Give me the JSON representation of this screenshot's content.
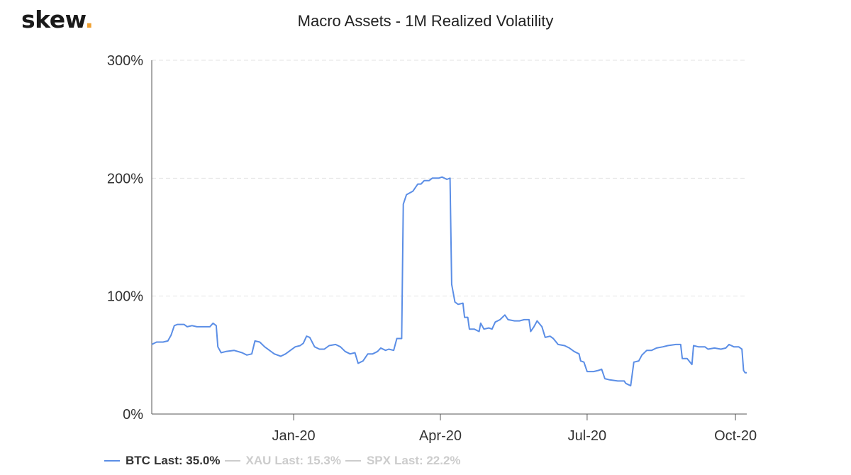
{
  "brand": {
    "name": "skew",
    "dot": "."
  },
  "chart_data": {
    "type": "line",
    "title": "Macro Assets - 1M Realized Volatility",
    "xlabel": "",
    "ylabel": "",
    "ylim": [
      0,
      300
    ],
    "yticks": [
      "0%",
      "100%",
      "200%",
      "300%"
    ],
    "ytick_values": [
      0,
      100,
      200,
      300
    ],
    "xticks": [
      "Jan-20",
      "Apr-20",
      "Jul-20",
      "Oct-20"
    ],
    "xtick_dates": [
      "2020-01-01",
      "2020-04-01",
      "2020-07-01",
      "2020-10-01"
    ],
    "xlim": [
      "2019-10-05",
      "2020-10-08"
    ],
    "grid": "horizontal dashed",
    "legend_position": "bottom-left",
    "series": [
      {
        "name": "BTC",
        "last_label": "Last: 35.0%",
        "color": "#5b8ee6",
        "visible": true,
        "points": [
          [
            "2019-10-05",
            59
          ],
          [
            "2019-10-08",
            61
          ],
          [
            "2019-10-12",
            61
          ],
          [
            "2019-10-15",
            62
          ],
          [
            "2019-10-17",
            67
          ],
          [
            "2019-10-19",
            75
          ],
          [
            "2019-10-21",
            76
          ],
          [
            "2019-10-25",
            76
          ],
          [
            "2019-10-27",
            74
          ],
          [
            "2019-10-30",
            75
          ],
          [
            "2019-11-02",
            74
          ],
          [
            "2019-11-07",
            74
          ],
          [
            "2019-11-10",
            74
          ],
          [
            "2019-11-12",
            77
          ],
          [
            "2019-11-14",
            75
          ],
          [
            "2019-11-15",
            57
          ],
          [
            "2019-11-17",
            52
          ],
          [
            "2019-11-20",
            53
          ],
          [
            "2019-11-25",
            54
          ],
          [
            "2019-11-30",
            52
          ],
          [
            "2019-12-03",
            50
          ],
          [
            "2019-12-06",
            51
          ],
          [
            "2019-12-08",
            62
          ],
          [
            "2019-12-11",
            61
          ],
          [
            "2019-12-14",
            57
          ],
          [
            "2019-12-17",
            54
          ],
          [
            "2019-12-20",
            51
          ],
          [
            "2019-12-24",
            49
          ],
          [
            "2019-12-27",
            51
          ],
          [
            "2019-12-30",
            54
          ],
          [
            "2020-01-02",
            57
          ],
          [
            "2020-01-05",
            58
          ],
          [
            "2020-01-07",
            60
          ],
          [
            "2020-01-09",
            66
          ],
          [
            "2020-01-11",
            65
          ],
          [
            "2020-01-14",
            57
          ],
          [
            "2020-01-17",
            55
          ],
          [
            "2020-01-20",
            55
          ],
          [
            "2020-01-23",
            58
          ],
          [
            "2020-01-27",
            59
          ],
          [
            "2020-01-30",
            57
          ],
          [
            "2020-02-02",
            53
          ],
          [
            "2020-02-05",
            51
          ],
          [
            "2020-02-08",
            52
          ],
          [
            "2020-02-10",
            43
          ],
          [
            "2020-02-13",
            45
          ],
          [
            "2020-02-16",
            51
          ],
          [
            "2020-02-19",
            51
          ],
          [
            "2020-02-22",
            53
          ],
          [
            "2020-02-24",
            56
          ],
          [
            "2020-02-27",
            54
          ],
          [
            "2020-02-29",
            55
          ],
          [
            "2020-03-03",
            54
          ],
          [
            "2020-03-05",
            64
          ],
          [
            "2020-03-08",
            64
          ],
          [
            "2020-03-09",
            178
          ],
          [
            "2020-03-11",
            186
          ],
          [
            "2020-03-15",
            189
          ],
          [
            "2020-03-18",
            195
          ],
          [
            "2020-03-20",
            195
          ],
          [
            "2020-03-22",
            198
          ],
          [
            "2020-03-25",
            198
          ],
          [
            "2020-03-27",
            200
          ],
          [
            "2020-03-31",
            200
          ],
          [
            "2020-04-02",
            201
          ],
          [
            "2020-04-05",
            199
          ],
          [
            "2020-04-07",
            200
          ],
          [
            "2020-04-08",
            110
          ],
          [
            "2020-04-10",
            95
          ],
          [
            "2020-04-12",
            93
          ],
          [
            "2020-04-15",
            94
          ],
          [
            "2020-04-16",
            82
          ],
          [
            "2020-04-18",
            82
          ],
          [
            "2020-04-19",
            72
          ],
          [
            "2020-04-22",
            72
          ],
          [
            "2020-04-25",
            70
          ],
          [
            "2020-04-26",
            77
          ],
          [
            "2020-04-28",
            72
          ],
          [
            "2020-05-01",
            73
          ],
          [
            "2020-05-03",
            72
          ],
          [
            "2020-05-05",
            78
          ],
          [
            "2020-05-08",
            80
          ],
          [
            "2020-05-11",
            84
          ],
          [
            "2020-05-13",
            80
          ],
          [
            "2020-05-17",
            79
          ],
          [
            "2020-05-20",
            79
          ],
          [
            "2020-05-23",
            80
          ],
          [
            "2020-05-26",
            80
          ],
          [
            "2020-05-27",
            70
          ],
          [
            "2020-05-29",
            74
          ],
          [
            "2020-05-31",
            79
          ],
          [
            "2020-06-03",
            74
          ],
          [
            "2020-06-05",
            65
          ],
          [
            "2020-06-08",
            66
          ],
          [
            "2020-06-10",
            64
          ],
          [
            "2020-06-13",
            59
          ],
          [
            "2020-06-17",
            58
          ],
          [
            "2020-06-20",
            56
          ],
          [
            "2020-06-23",
            53
          ],
          [
            "2020-06-26",
            51
          ],
          [
            "2020-06-27",
            45
          ],
          [
            "2020-06-29",
            44
          ],
          [
            "2020-07-01",
            36
          ],
          [
            "2020-07-05",
            36
          ],
          [
            "2020-07-08",
            37
          ],
          [
            "2020-07-10",
            38
          ],
          [
            "2020-07-12",
            30
          ],
          [
            "2020-07-15",
            29
          ],
          [
            "2020-07-20",
            28
          ],
          [
            "2020-07-24",
            28
          ],
          [
            "2020-07-25",
            26
          ],
          [
            "2020-07-28",
            24
          ],
          [
            "2020-07-30",
            44
          ],
          [
            "2020-08-02",
            45
          ],
          [
            "2020-08-04",
            50
          ],
          [
            "2020-08-07",
            54
          ],
          [
            "2020-08-10",
            54
          ],
          [
            "2020-08-13",
            56
          ],
          [
            "2020-08-17",
            57
          ],
          [
            "2020-08-20",
            58
          ],
          [
            "2020-08-25",
            59
          ],
          [
            "2020-08-28",
            59
          ],
          [
            "2020-08-29",
            47
          ],
          [
            "2020-09-01",
            47
          ],
          [
            "2020-09-04",
            42
          ],
          [
            "2020-09-05",
            58
          ],
          [
            "2020-09-08",
            57
          ],
          [
            "2020-09-12",
            57
          ],
          [
            "2020-09-14",
            55
          ],
          [
            "2020-09-18",
            56
          ],
          [
            "2020-09-22",
            55
          ],
          [
            "2020-09-25",
            56
          ],
          [
            "2020-09-27",
            59
          ],
          [
            "2020-09-30",
            57
          ],
          [
            "2020-10-03",
            57
          ],
          [
            "2020-10-05",
            55
          ],
          [
            "2020-10-06",
            37
          ],
          [
            "2020-10-07",
            35
          ],
          [
            "2020-10-08",
            35
          ]
        ]
      },
      {
        "name": "XAU",
        "last_label": "Last: 15.3%",
        "color": "#cccccc",
        "visible": false
      },
      {
        "name": "SPX",
        "last_label": "Last: 22.2%",
        "color": "#cccccc",
        "visible": false
      }
    ]
  }
}
